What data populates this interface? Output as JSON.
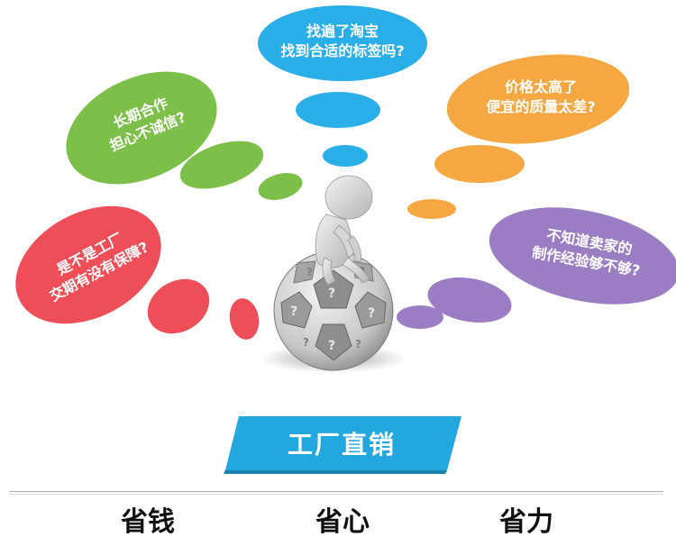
{
  "bubbles": {
    "top_center": {
      "line1": "找遍了淘宝",
      "line2": "找到合适的标签吗?",
      "color": "#2aaee8"
    },
    "top_right": {
      "line1": "价格太高了",
      "line2": "便宜的质量太差?",
      "color": "#f5a742"
    },
    "upper_left": {
      "line1": "长期合作",
      "line2": "担心不诚信?",
      "color": "#7cc04a"
    },
    "lower_right": {
      "line1": "不知道卖家的",
      "line2": "制作经验够不够?",
      "color": "#9b7dc4"
    },
    "lower_left": {
      "line1": "是不是工厂",
      "line2": "交期有没有保障?",
      "color": "#ee4e58"
    }
  },
  "banner": {
    "label": "工厂直销",
    "color": "#22a7df"
  },
  "footer": {
    "items": [
      "省钱",
      "省心",
      "省力"
    ]
  },
  "figure": {
    "icon": "thinking-person-on-question-ball-icon"
  }
}
